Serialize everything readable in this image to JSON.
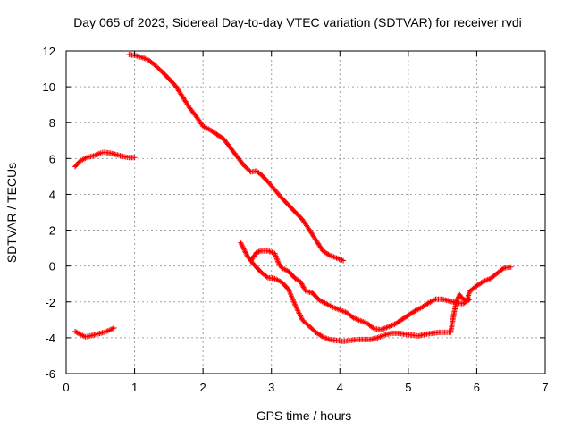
{
  "chart_data": {
    "type": "scatter",
    "title": "Day 065 of 2023, Sidereal Day-to-day VTEC variation (SDTVAR) for receiver rvdi",
    "xlabel": "GPS time / hours",
    "ylabel": "SDTVAR / TECUs",
    "xlim": [
      0,
      7
    ],
    "ylim": [
      -6,
      12
    ],
    "xticks": [
      0,
      1,
      2,
      3,
      4,
      5,
      6,
      7
    ],
    "yticks": [
      -6,
      -4,
      -2,
      0,
      2,
      4,
      6,
      8,
      10,
      12
    ],
    "grid": true,
    "marker": "+",
    "series": [
      {
        "name": "track-a-upper",
        "color": "#ff0000",
        "points": [
          [
            0.13,
            5.55
          ],
          [
            0.2,
            5.85
          ],
          [
            0.3,
            6.05
          ],
          [
            0.4,
            6.15
          ],
          [
            0.5,
            6.3
          ],
          [
            0.55,
            6.35
          ],
          [
            0.65,
            6.3
          ],
          [
            0.75,
            6.2
          ],
          [
            0.85,
            6.1
          ],
          [
            0.92,
            6.05
          ],
          [
            1.0,
            6.05
          ]
        ]
      },
      {
        "name": "track-a-lower",
        "color": "#ff0000",
        "points": [
          [
            0.13,
            -3.65
          ],
          [
            0.2,
            -3.8
          ],
          [
            0.28,
            -3.95
          ],
          [
            0.35,
            -3.9
          ],
          [
            0.45,
            -3.8
          ],
          [
            0.55,
            -3.7
          ],
          [
            0.65,
            -3.55
          ],
          [
            0.7,
            -3.45
          ]
        ]
      },
      {
        "name": "track-b",
        "color": "#ff0000",
        "points": [
          [
            0.92,
            11.8
          ],
          [
            1.0,
            11.75
          ],
          [
            1.1,
            11.65
          ],
          [
            1.2,
            11.5
          ],
          [
            1.3,
            11.2
          ],
          [
            1.4,
            10.85
          ],
          [
            1.5,
            10.45
          ],
          [
            1.6,
            10.05
          ],
          [
            1.7,
            9.45
          ],
          [
            1.8,
            8.85
          ],
          [
            1.9,
            8.35
          ],
          [
            2.0,
            7.8
          ],
          [
            2.1,
            7.6
          ],
          [
            2.2,
            7.35
          ],
          [
            2.3,
            7.1
          ],
          [
            2.4,
            6.6
          ],
          [
            2.5,
            6.1
          ],
          [
            2.6,
            5.6
          ],
          [
            2.7,
            5.25
          ],
          [
            2.78,
            5.3
          ],
          [
            2.85,
            5.1
          ],
          [
            2.95,
            4.7
          ],
          [
            3.05,
            4.25
          ],
          [
            3.15,
            3.8
          ],
          [
            3.25,
            3.4
          ],
          [
            3.35,
            3.0
          ],
          [
            3.45,
            2.6
          ],
          [
            3.55,
            2.05
          ],
          [
            3.65,
            1.45
          ],
          [
            3.75,
            0.85
          ],
          [
            3.85,
            0.6
          ],
          [
            3.95,
            0.45
          ],
          [
            4.05,
            0.3
          ]
        ]
      },
      {
        "name": "track-c",
        "color": "#ff0000",
        "points": [
          [
            2.55,
            1.3
          ],
          [
            2.65,
            0.55
          ],
          [
            2.75,
            0.05
          ],
          [
            2.85,
            -0.35
          ],
          [
            2.95,
            -0.65
          ],
          [
            3.05,
            -0.7
          ],
          [
            3.15,
            -0.9
          ],
          [
            3.25,
            -1.3
          ],
          [
            3.35,
            -2.2
          ],
          [
            3.45,
            -3.0
          ],
          [
            3.55,
            -3.35
          ],
          [
            3.65,
            -3.7
          ],
          [
            3.75,
            -3.95
          ],
          [
            3.85,
            -4.1
          ],
          [
            3.95,
            -4.15
          ],
          [
            4.05,
            -4.2
          ],
          [
            4.15,
            -4.15
          ],
          [
            4.25,
            -4.1
          ],
          [
            4.35,
            -4.1
          ],
          [
            4.45,
            -4.1
          ],
          [
            4.55,
            -4.0
          ],
          [
            4.65,
            -3.85
          ],
          [
            4.75,
            -3.75
          ],
          [
            4.85,
            -3.75
          ],
          [
            4.95,
            -3.8
          ],
          [
            5.05,
            -3.85
          ],
          [
            5.15,
            -3.9
          ],
          [
            5.25,
            -3.8
          ],
          [
            5.35,
            -3.75
          ],
          [
            5.45,
            -3.7
          ],
          [
            5.55,
            -3.7
          ],
          [
            5.62,
            -3.7
          ],
          [
            5.65,
            -3.0
          ],
          [
            5.7,
            -2.0
          ],
          [
            5.75,
            -1.6
          ],
          [
            5.8,
            -1.85
          ],
          [
            5.85,
            -1.95
          ],
          [
            5.9,
            -1.4
          ],
          [
            6.0,
            -1.1
          ],
          [
            6.1,
            -0.85
          ],
          [
            6.2,
            -0.7
          ],
          [
            6.3,
            -0.4
          ],
          [
            6.4,
            -0.1
          ],
          [
            6.5,
            -0.05
          ]
        ]
      },
      {
        "name": "track-d",
        "color": "#ff0000",
        "points": [
          [
            2.7,
            0.3
          ],
          [
            2.78,
            0.75
          ],
          [
            2.85,
            0.85
          ],
          [
            2.95,
            0.85
          ],
          [
            3.05,
            0.7
          ],
          [
            3.1,
            0.2
          ],
          [
            3.15,
            -0.1
          ],
          [
            3.25,
            -0.3
          ],
          [
            3.35,
            -0.7
          ],
          [
            3.42,
            -0.85
          ],
          [
            3.5,
            -1.4
          ],
          [
            3.6,
            -1.5
          ],
          [
            3.7,
            -1.9
          ],
          [
            3.8,
            -2.1
          ],
          [
            3.9,
            -2.3
          ],
          [
            4.0,
            -2.45
          ],
          [
            4.1,
            -2.6
          ],
          [
            4.2,
            -2.9
          ],
          [
            4.3,
            -3.05
          ],
          [
            4.4,
            -3.2
          ],
          [
            4.5,
            -3.5
          ],
          [
            4.6,
            -3.55
          ],
          [
            4.7,
            -3.4
          ],
          [
            4.8,
            -3.25
          ],
          [
            4.9,
            -3.0
          ],
          [
            5.0,
            -2.75
          ],
          [
            5.1,
            -2.5
          ],
          [
            5.2,
            -2.3
          ],
          [
            5.3,
            -2.05
          ],
          [
            5.4,
            -1.85
          ],
          [
            5.5,
            -1.85
          ],
          [
            5.6,
            -1.95
          ],
          [
            5.7,
            -2.05
          ],
          [
            5.8,
            -2.1
          ],
          [
            5.9,
            -1.85
          ]
        ]
      }
    ]
  }
}
